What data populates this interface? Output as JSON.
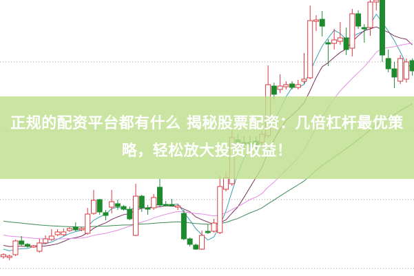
{
  "title": "正规的配资平台都有什么 揭秘股票配资：几倍杠杆最优策略，轻松放大投资收益！",
  "colors": {
    "banner": "#c6e29c",
    "up": "#d9363e",
    "down": "#1e8a2e",
    "ma_short": "#3a9fb5",
    "ma_mid": "#7b2d5c",
    "ma_long": "#e58be6",
    "ma_longest": "#3a8a55",
    "grid": "#999999"
  },
  "chart_data": {
    "type": "candlestick",
    "title": "",
    "grid": true,
    "candles": [
      [
        27,
        30,
        32,
        24
      ],
      [
        26,
        28,
        30,
        22
      ],
      [
        30,
        50,
        52,
        28
      ],
      [
        50,
        45,
        57,
        43
      ],
      [
        45,
        42,
        47,
        40
      ],
      [
        41,
        43,
        44,
        40
      ],
      [
        35,
        47,
        53,
        33
      ],
      [
        47,
        53,
        58,
        45
      ],
      [
        52,
        57,
        67,
        50
      ],
      [
        59,
        63,
        67,
        57
      ],
      [
        59,
        63,
        68,
        57
      ],
      [
        65,
        68,
        70,
        63
      ],
      [
        70,
        66,
        77,
        64
      ],
      [
        66,
        68,
        70,
        64
      ],
      [
        61,
        89,
        98,
        59
      ],
      [
        90,
        109,
        124,
        88
      ],
      [
        110,
        92,
        111,
        88
      ],
      [
        91,
        87,
        95,
        80
      ],
      [
        99,
        107,
        124,
        90
      ],
      [
        104,
        100,
        110,
        95
      ],
      [
        100,
        96,
        102,
        94
      ],
      [
        96,
        82,
        100,
        80
      ],
      [
        58,
        115,
        133,
        57
      ],
      [
        115,
        98,
        117,
        92
      ],
      [
        98,
        96,
        102,
        88
      ],
      [
        98,
        113,
        118,
        95
      ],
      [
        128,
        102,
        140,
        100
      ],
      [
        103,
        101,
        108,
        100
      ],
      [
        103,
        101,
        111,
        100
      ],
      [
        99,
        101,
        103,
        95
      ],
      [
        90,
        53,
        95,
        51
      ],
      [
        53,
        45,
        55,
        42
      ],
      [
        44,
        38,
        46,
        37
      ],
      [
        38,
        58,
        65,
        37
      ],
      [
        64,
        62,
        74,
        60
      ],
      [
        64,
        76,
        82,
        62
      ],
      [
        62,
        129,
        145,
        60
      ],
      [
        125,
        142,
        150,
        122
      ],
      [
        133,
        200,
        215,
        130
      ],
      [
        197,
        193,
        205,
        185
      ],
      [
        193,
        190,
        202,
        185
      ],
      [
        193,
        190,
        202,
        185
      ],
      [
        195,
        183,
        202,
        178
      ],
      [
        193,
        205,
        210,
        188
      ],
      [
        203,
        277,
        305,
        200
      ],
      [
        275,
        263,
        280,
        255
      ],
      [
        270,
        275,
        292,
        265
      ],
      [
        274,
        277,
        282,
        270
      ],
      [
        278,
        273,
        282,
        270
      ],
      [
        273,
        277,
        284,
        270
      ],
      [
        282,
        285,
        323,
        278
      ],
      [
        287,
        370,
        392,
        285
      ],
      [
        369,
        371,
        378,
        355
      ],
      [
        372,
        362,
        384,
        347
      ],
      [
        338,
        336,
        343,
        304
      ],
      [
        337,
        342,
        358,
        328
      ],
      [
        340,
        345,
        368,
        335
      ],
      [
        345,
        328,
        360,
        320
      ],
      [
        330,
        380,
        387,
        318
      ],
      [
        380,
        362,
        385,
        358
      ],
      [
        360,
        358,
        365,
        338
      ],
      [
        360,
        397,
        400,
        348
      ],
      [
        397,
        400,
        400,
        385
      ],
      [
        400,
        320,
        400,
        310
      ],
      [
        315,
        300,
        328,
        295
      ],
      [
        300,
        288,
        310,
        272
      ],
      [
        282,
        315,
        320,
        278
      ],
      [
        285,
        310,
        315,
        280
      ],
      [
        312,
        297,
        315,
        290
      ]
    ]
  }
}
